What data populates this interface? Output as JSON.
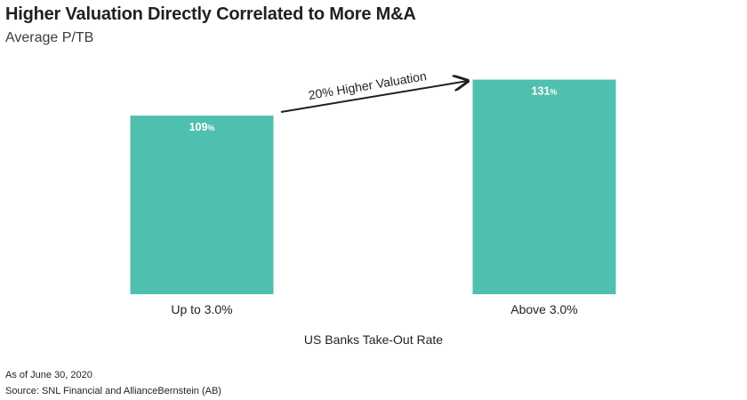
{
  "title": "Higher Valuation Directly Correlated to More M&A",
  "subtitle": "Average P/TB",
  "chart_data": {
    "type": "bar",
    "categories": [
      "Up to 3.0%",
      "Above 3.0%"
    ],
    "values": [
      109,
      131
    ],
    "value_labels": [
      "109",
      "131"
    ],
    "value_unit": "%",
    "xlabel": "US Banks Take-Out Rate",
    "ylabel": "",
    "ylim": [
      0,
      135
    ],
    "grid": false,
    "annotation": "20% Higher Valuation",
    "bar_color": "#4fbfaf"
  },
  "notes": {
    "as_of": "As of June 30, 2020",
    "source": "Source: SNL Financial and AllianceBernstein (AB)"
  }
}
